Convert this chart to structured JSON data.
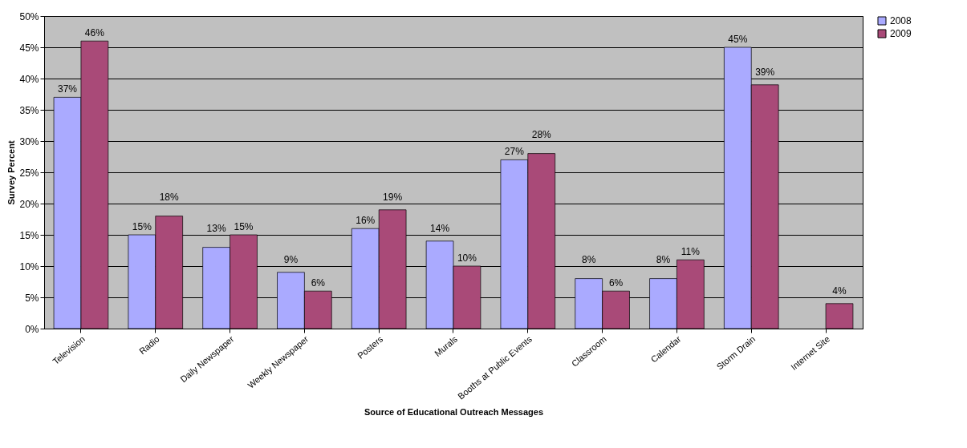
{
  "chart_data": {
    "type": "bar",
    "xlabel": "Source of Educational Outreach Messages",
    "ylabel": "Survey Percent",
    "categories": [
      "Television",
      "Radio",
      "Daily Newspaper",
      "Weekly Newspaper",
      "Posters",
      "Murals",
      "Booths at Public Events",
      "Classroom",
      "Calendar",
      "Storm Drain",
      "Internet Site"
    ],
    "series": [
      {
        "name": "2008",
        "color": "#aaaaff",
        "values": [
          37,
          15,
          13,
          9,
          16,
          14,
          27,
          8,
          8,
          45,
          null
        ],
        "value_labels": [
          "37%",
          "15%",
          "13%",
          "9%",
          "16%",
          "14%",
          "27%",
          "8%",
          "8%",
          "45%",
          null
        ]
      },
      {
        "name": "2009",
        "color": "#a94a78",
        "values": [
          46,
          18,
          15,
          6,
          19,
          10,
          28,
          6,
          11,
          39,
          4
        ],
        "value_labels": [
          "46%",
          "18%",
          "15%",
          "6%",
          "19%",
          "10%",
          "28%",
          "6%",
          "11%",
          "39%",
          "4%"
        ]
      }
    ],
    "ylim": [
      0,
      50
    ],
    "yticks": [
      {
        "value": 0,
        "label": "0%"
      },
      {
        "value": 5,
        "label": "5%"
      },
      {
        "value": 10,
        "label": "10%"
      },
      {
        "value": 15,
        "label": "15%"
      },
      {
        "value": 20,
        "label": "20%"
      },
      {
        "value": 25,
        "label": "25%"
      },
      {
        "value": 30,
        "label": "30%"
      },
      {
        "value": 35,
        "label": "35%"
      },
      {
        "value": 40,
        "label": "40%"
      },
      {
        "value": 45,
        "label": "45%"
      },
      {
        "value": 50,
        "label": "50%"
      }
    ],
    "grid": "y",
    "legend": "right"
  }
}
